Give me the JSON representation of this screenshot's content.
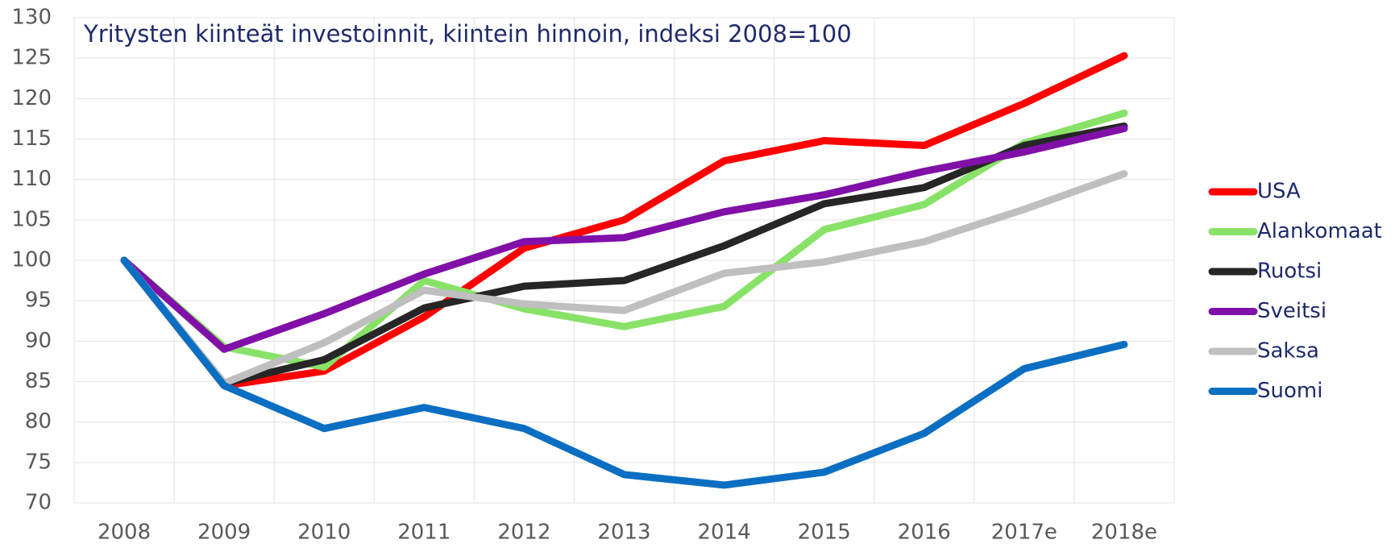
{
  "chart_data": {
    "type": "line",
    "title": "Yritysten kiinteät investoinnit, kiintein hinnoin, indeksi 2008=100",
    "categories": [
      "2008",
      "2009",
      "2010",
      "2011",
      "2012",
      "2013",
      "2014",
      "2015",
      "2016",
      "2017e",
      "2018e"
    ],
    "series": [
      {
        "name": "USA",
        "color": "#ff0000",
        "values": [
          100,
          84.5,
          86.3,
          93,
          101.5,
          105,
          112.3,
          114.8,
          114.2,
          119.4,
          125.3
        ]
      },
      {
        "name": "Alankomaat",
        "color": "#88e268",
        "values": [
          100,
          89.3,
          86.8,
          97.5,
          94,
          91.8,
          94.3,
          103.8,
          106.9,
          114.5,
          118.2
        ]
      },
      {
        "name": "Ruotsi",
        "color": "#262626",
        "values": [
          100,
          84.8,
          87.7,
          94.1,
          96.8,
          97.5,
          101.8,
          107,
          109,
          114.2,
          116.6
        ]
      },
      {
        "name": "Sveitsi",
        "color": "#8010a8",
        "values": [
          100,
          89,
          93.4,
          98.3,
          102.3,
          102.8,
          106,
          108.1,
          111,
          113.4,
          116.3
        ]
      },
      {
        "name": "Saksa",
        "color": "#bfbfbf",
        "values": [
          100,
          84.8,
          89.8,
          96.3,
          94.6,
          93.8,
          98.4,
          99.8,
          102.3,
          106.3,
          110.7
        ]
      },
      {
        "name": "Suomi",
        "color": "#0a6fc2",
        "values": [
          100,
          84.5,
          79.2,
          81.8,
          79.2,
          73.5,
          72.2,
          73.8,
          78.6,
          86.6,
          89.6
        ]
      }
    ],
    "ylim": [
      70,
      130
    ],
    "yticks": [
      70,
      75,
      80,
      85,
      90,
      95,
      100,
      105,
      110,
      115,
      120,
      125,
      130
    ],
    "grid": true,
    "legend": "right"
  }
}
